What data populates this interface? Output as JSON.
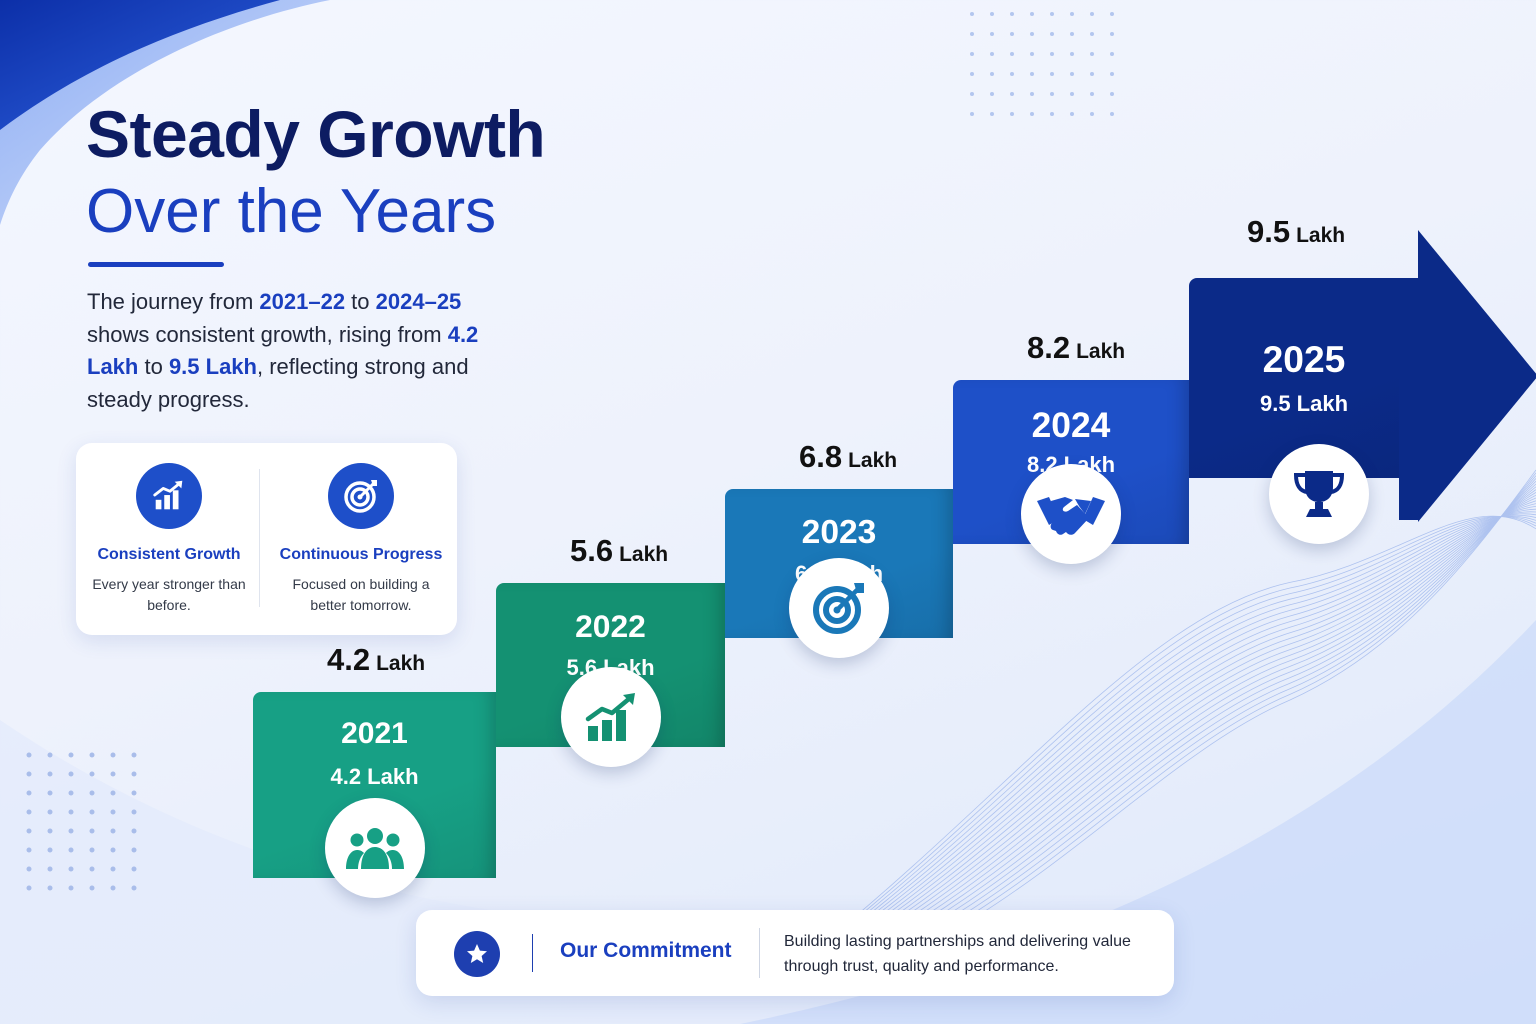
{
  "header": {
    "title_line1": "Steady Growth",
    "title_line2": "Over the Years"
  },
  "intro": {
    "t1": "The journey from ",
    "h1": "2021–22",
    "t2": " to ",
    "h2": "2024–25",
    "t3": " shows consistent growth, rising from ",
    "h3": "4.2 Lakh",
    "t4": " to ",
    "h4": "9.5 Lakh",
    "t5": ", reflecting strong and steady progress."
  },
  "features": [
    {
      "title": "Consistent Growth",
      "desc": "Every year stronger than before.",
      "icon": "bar-chart-growth-icon"
    },
    {
      "title": "Continuous Progress",
      "desc": "Focused on building a better tomorrow.",
      "icon": "target-icon"
    }
  ],
  "chart_data": {
    "type": "bar",
    "categories": [
      "2021",
      "2022",
      "2023",
      "2024",
      "2025"
    ],
    "values": [
      4.2,
      5.6,
      6.8,
      8.2,
      9.5
    ],
    "unit": "Lakh",
    "value_labels": [
      "4.2",
      "5.6",
      "6.8",
      "8.2",
      "9.5"
    ],
    "inner_labels": [
      "4.2 Lakh",
      "5.6 Lakh",
      "6.8 Lakh",
      "8.2 Lakh",
      "9.5 Lakh"
    ],
    "colors": [
      "#17a085",
      "#149172",
      "#1a78b8",
      "#1e50c8",
      "#0b2a88"
    ],
    "icons": [
      "people-icon",
      "growth-chart-icon",
      "target-icon",
      "handshake-icon",
      "trophy-icon"
    ],
    "style": "ascending staircase ending in arrow"
  },
  "commitment": {
    "title": "Our Commitment",
    "text": "Building lasting partnerships and delivering value through trust, quality and performance.",
    "icon": "star-icon"
  },
  "colors": {
    "navy": "#0d1c62",
    "accent_blue": "#1a3fbf"
  }
}
